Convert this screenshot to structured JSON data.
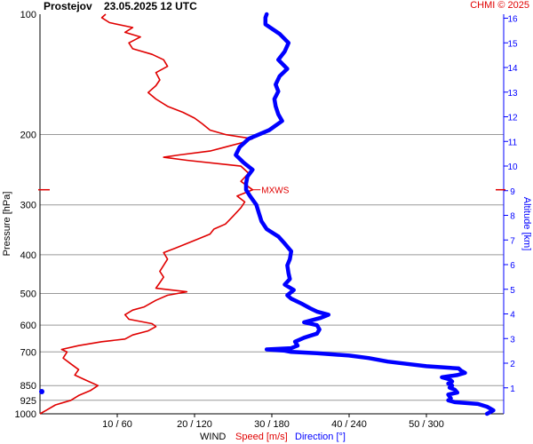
{
  "header": {
    "station": "Prostejov",
    "datetime": "23.05.2025 12 UTC",
    "credit": "CHMI © 2025"
  },
  "colors": {
    "speed": "#e00000",
    "direction": "#0000ff",
    "grid": "#999999"
  },
  "chart_data": {
    "type": "line",
    "ylabel": "Pressure [hPa]",
    "y2label": "Altitude [km]",
    "xlabel": {
      "prefix": "WIND",
      "speed": "Speed [m/s]",
      "direction": "Direction [°]"
    },
    "yscale": "log",
    "ylim": [
      1000,
      100
    ],
    "xlim_speed": [
      0,
      60
    ],
    "xlim_direction": [
      0,
      360
    ],
    "pressure_ticks": [
      1000,
      925,
      850,
      700,
      600,
      500,
      400,
      300,
      200,
      100
    ],
    "grid_pressures": [
      925,
      850,
      700,
      600,
      500,
      400,
      300,
      200
    ],
    "x_ticks": [
      "10 / 60",
      "20 / 120",
      "30 / 180",
      "40 / 240",
      "50 / 300"
    ],
    "altitude_ticks": [
      1,
      2,
      3,
      4,
      5,
      6,
      7,
      8,
      9,
      10,
      11,
      12,
      13,
      14,
      15,
      16
    ],
    "mxws": {
      "label": "MXWS",
      "pressure": 275,
      "speed": 27.5
    },
    "series": [
      {
        "name": "Speed [m/s]",
        "unit": "m/s",
        "points": [
          [
            1000,
            0
          ],
          [
            980,
            0.8
          ],
          [
            950,
            2
          ],
          [
            925,
            4
          ],
          [
            900,
            5
          ],
          [
            875,
            6.5
          ],
          [
            850,
            7.5
          ],
          [
            825,
            6
          ],
          [
            800,
            4.5
          ],
          [
            775,
            5
          ],
          [
            750,
            4
          ],
          [
            725,
            3
          ],
          [
            700,
            3.5
          ],
          [
            690,
            2.8
          ],
          [
            675,
            5
          ],
          [
            660,
            8
          ],
          [
            650,
            11
          ],
          [
            635,
            12
          ],
          [
            620,
            14
          ],
          [
            605,
            15
          ],
          [
            595,
            14.5
          ],
          [
            580,
            11.5
          ],
          [
            565,
            11
          ],
          [
            550,
            12
          ],
          [
            540,
            13.5
          ],
          [
            520,
            15
          ],
          [
            505,
            16.5
          ],
          [
            495,
            19
          ],
          [
            485,
            15
          ],
          [
            470,
            15.5
          ],
          [
            455,
            16
          ],
          [
            440,
            15.5
          ],
          [
            425,
            16
          ],
          [
            410,
            16.5
          ],
          [
            395,
            16
          ],
          [
            385,
            17.5
          ],
          [
            375,
            19
          ],
          [
            365,
            20.5
          ],
          [
            355,
            22
          ],
          [
            345,
            22.5
          ],
          [
            335,
            24
          ],
          [
            320,
            25
          ],
          [
            305,
            26
          ],
          [
            295,
            26.5
          ],
          [
            285,
            25.5
          ],
          [
            275,
            27.5
          ],
          [
            262,
            26
          ],
          [
            250,
            27
          ],
          [
            240,
            26
          ],
          [
            232,
            19
          ],
          [
            228,
            16
          ],
          [
            225,
            18
          ],
          [
            220,
            22
          ],
          [
            210,
            26
          ],
          [
            205,
            27.5
          ],
          [
            200,
            24
          ],
          [
            195,
            22
          ],
          [
            188,
            21
          ],
          [
            182,
            20
          ],
          [
            176,
            18.5
          ],
          [
            170,
            16.5
          ],
          [
            163,
            15
          ],
          [
            157,
            14
          ],
          [
            151,
            15
          ],
          [
            146,
            15.5
          ],
          [
            140,
            15
          ],
          [
            135,
            16.5
          ],
          [
            130,
            16
          ],
          [
            126,
            14.5
          ],
          [
            122,
            12
          ],
          [
            118,
            11.5
          ],
          [
            114,
            13
          ],
          [
            111,
            11
          ],
          [
            108,
            12
          ],
          [
            105,
            9
          ],
          [
            102,
            8
          ],
          [
            100,
            8.5
          ]
        ]
      },
      {
        "name": "Direction [°]",
        "unit": "°",
        "points": [
          [
            1000,
            347
          ],
          [
            980,
            352
          ],
          [
            960,
            347
          ],
          [
            945,
            340
          ],
          [
            935,
            322
          ],
          [
            925,
            317
          ],
          [
            915,
            319
          ],
          [
            905,
            318
          ],
          [
            895,
            317
          ],
          [
            885,
            324
          ],
          [
            870,
            322
          ],
          [
            860,
            318
          ],
          [
            850,
            320
          ],
          [
            840,
            317
          ],
          [
            830,
            320
          ],
          [
            820,
            318
          ],
          [
            810,
            312
          ],
          [
            800,
            324
          ],
          [
            790,
            330
          ],
          [
            780,
            327
          ],
          [
            770,
            325
          ],
          [
            760,
            300
          ],
          [
            750,
            285
          ],
          [
            740,
            270
          ],
          [
            725,
            255
          ],
          [
            715,
            240
          ],
          [
            705,
            215
          ],
          [
            700,
            195
          ],
          [
            695,
            190
          ],
          [
            690,
            176
          ],
          [
            685,
            195
          ],
          [
            675,
            200
          ],
          [
            660,
            198
          ],
          [
            645,
            205
          ],
          [
            630,
            215
          ],
          [
            615,
            217
          ],
          [
            600,
            215
          ],
          [
            590,
            205
          ],
          [
            575,
            218
          ],
          [
            565,
            224
          ],
          [
            555,
            215
          ],
          [
            545,
            210
          ],
          [
            530,
            203
          ],
          [
            515,
            195
          ],
          [
            505,
            192
          ],
          [
            490,
            197
          ],
          [
            475,
            190
          ],
          [
            460,
            194
          ],
          [
            445,
            193
          ],
          [
            425,
            192
          ],
          [
            410,
            194
          ],
          [
            392,
            195
          ],
          [
            375,
            190
          ],
          [
            360,
            185
          ],
          [
            345,
            176
          ],
          [
            330,
            172
          ],
          [
            315,
            170
          ],
          [
            300,
            168
          ],
          [
            285,
            163
          ],
          [
            275,
            160
          ],
          [
            265,
            160
          ],
          [
            255,
            161
          ],
          [
            245,
            165
          ],
          [
            235,
            158
          ],
          [
            225,
            152
          ],
          [
            215,
            155
          ],
          [
            205,
            162
          ],
          [
            195,
            178
          ],
          [
            185,
            188
          ],
          [
            178,
            185
          ],
          [
            170,
            183
          ],
          [
            163,
            182
          ],
          [
            156,
            185
          ],
          [
            150,
            183
          ],
          [
            143,
            186
          ],
          [
            137,
            192
          ],
          [
            130,
            185
          ],
          [
            124,
            190
          ],
          [
            118,
            193
          ],
          [
            112,
            186
          ],
          [
            106,
            175
          ],
          [
            102,
            175
          ],
          [
            100,
            176
          ]
        ]
      }
    ]
  }
}
